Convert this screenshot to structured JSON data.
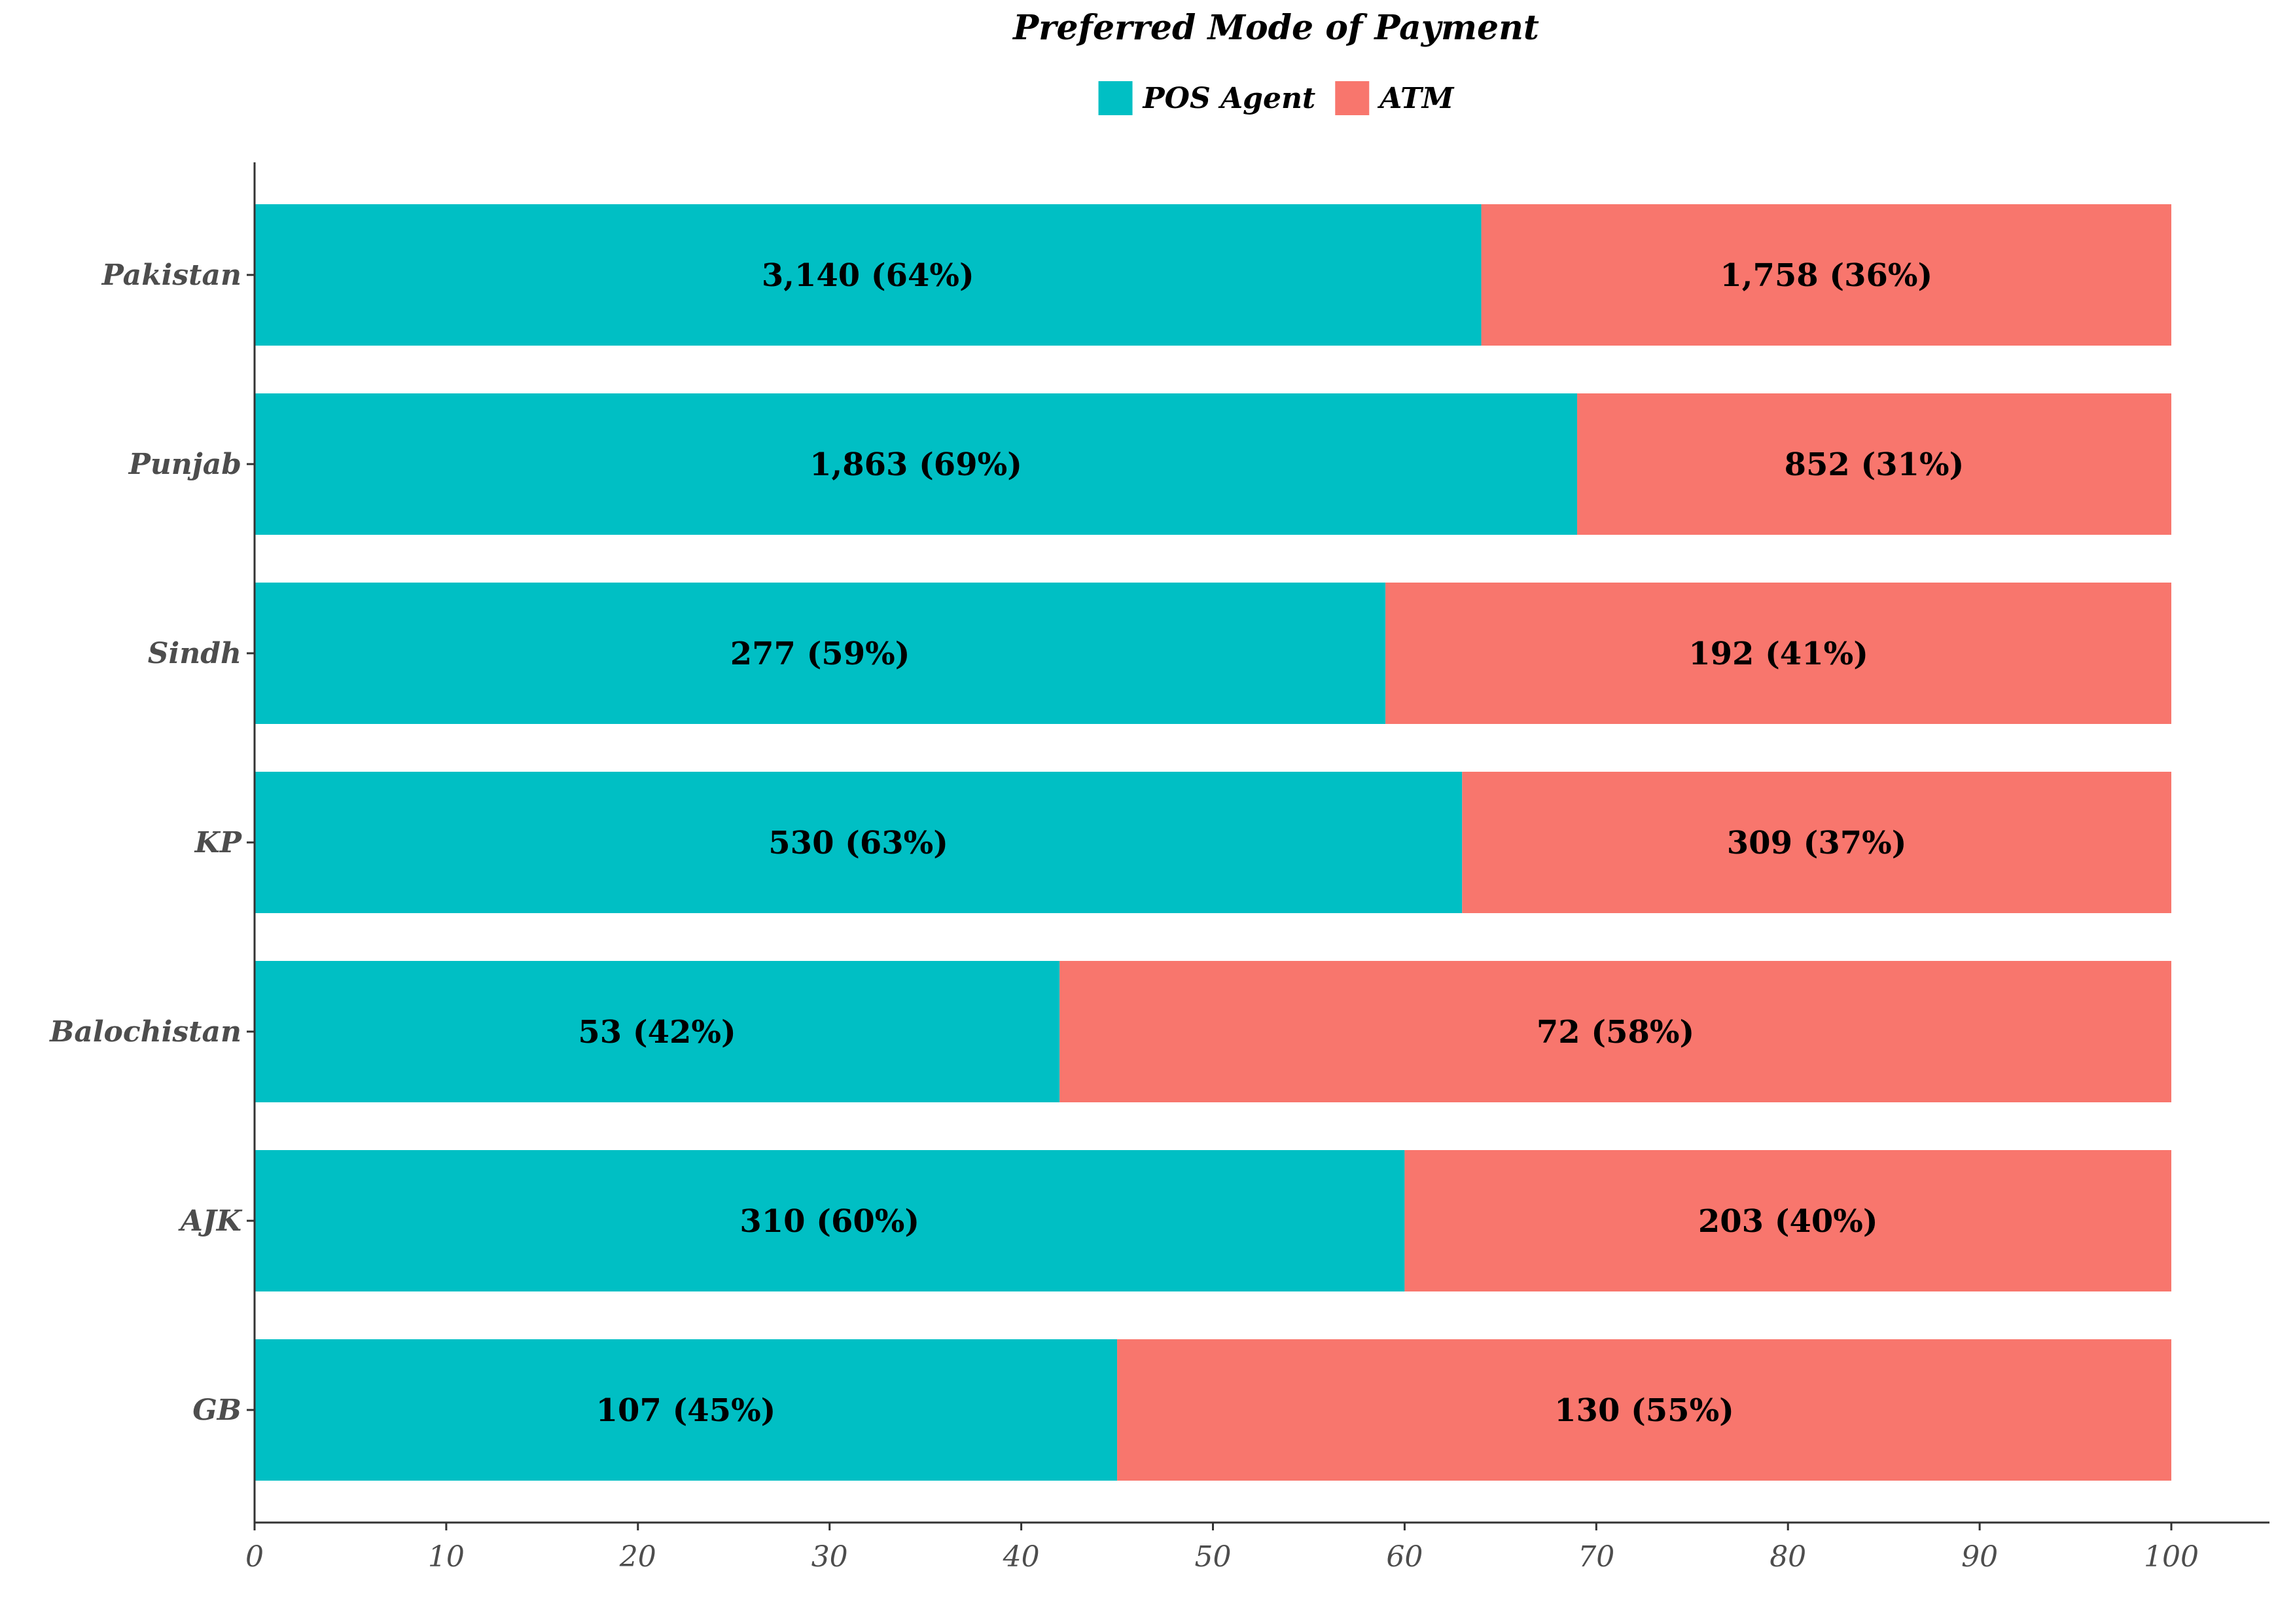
{
  "chart_data": {
    "type": "bar",
    "orientation": "horizontal",
    "stacked": true,
    "title": "Preferred Mode of Payment",
    "xlabel": "",
    "ylabel": "",
    "xlim": [
      0,
      100
    ],
    "xticks": [
      0,
      10,
      20,
      30,
      40,
      50,
      60,
      70,
      80,
      90,
      100
    ],
    "grid": false,
    "legend_position": "top-center",
    "categories": [
      "Pakistan",
      "Punjab",
      "Sindh",
      "KP",
      "Balochistan",
      "AJK",
      "GB"
    ],
    "series": [
      {
        "name": "POS Agent",
        "color": "#00BFC4",
        "values": [
          64,
          69,
          59,
          63,
          42,
          60,
          45
        ],
        "labels": [
          "3,140 (64%)",
          "1,863 (69%)",
          "277 (59%)",
          "530 (63%)",
          "53 (42%)",
          "310 (60%)",
          "107 (45%)"
        ]
      },
      {
        "name": "ATM",
        "color": "#F8766D",
        "values": [
          36,
          31,
          41,
          37,
          58,
          40,
          55
        ],
        "labels": [
          "1,758 (36%)",
          "852 (31%)",
          "192 (41%)",
          "309 (37%)",
          "72 (58%)",
          "203 (40%)",
          "130 (55%)"
        ]
      }
    ]
  }
}
